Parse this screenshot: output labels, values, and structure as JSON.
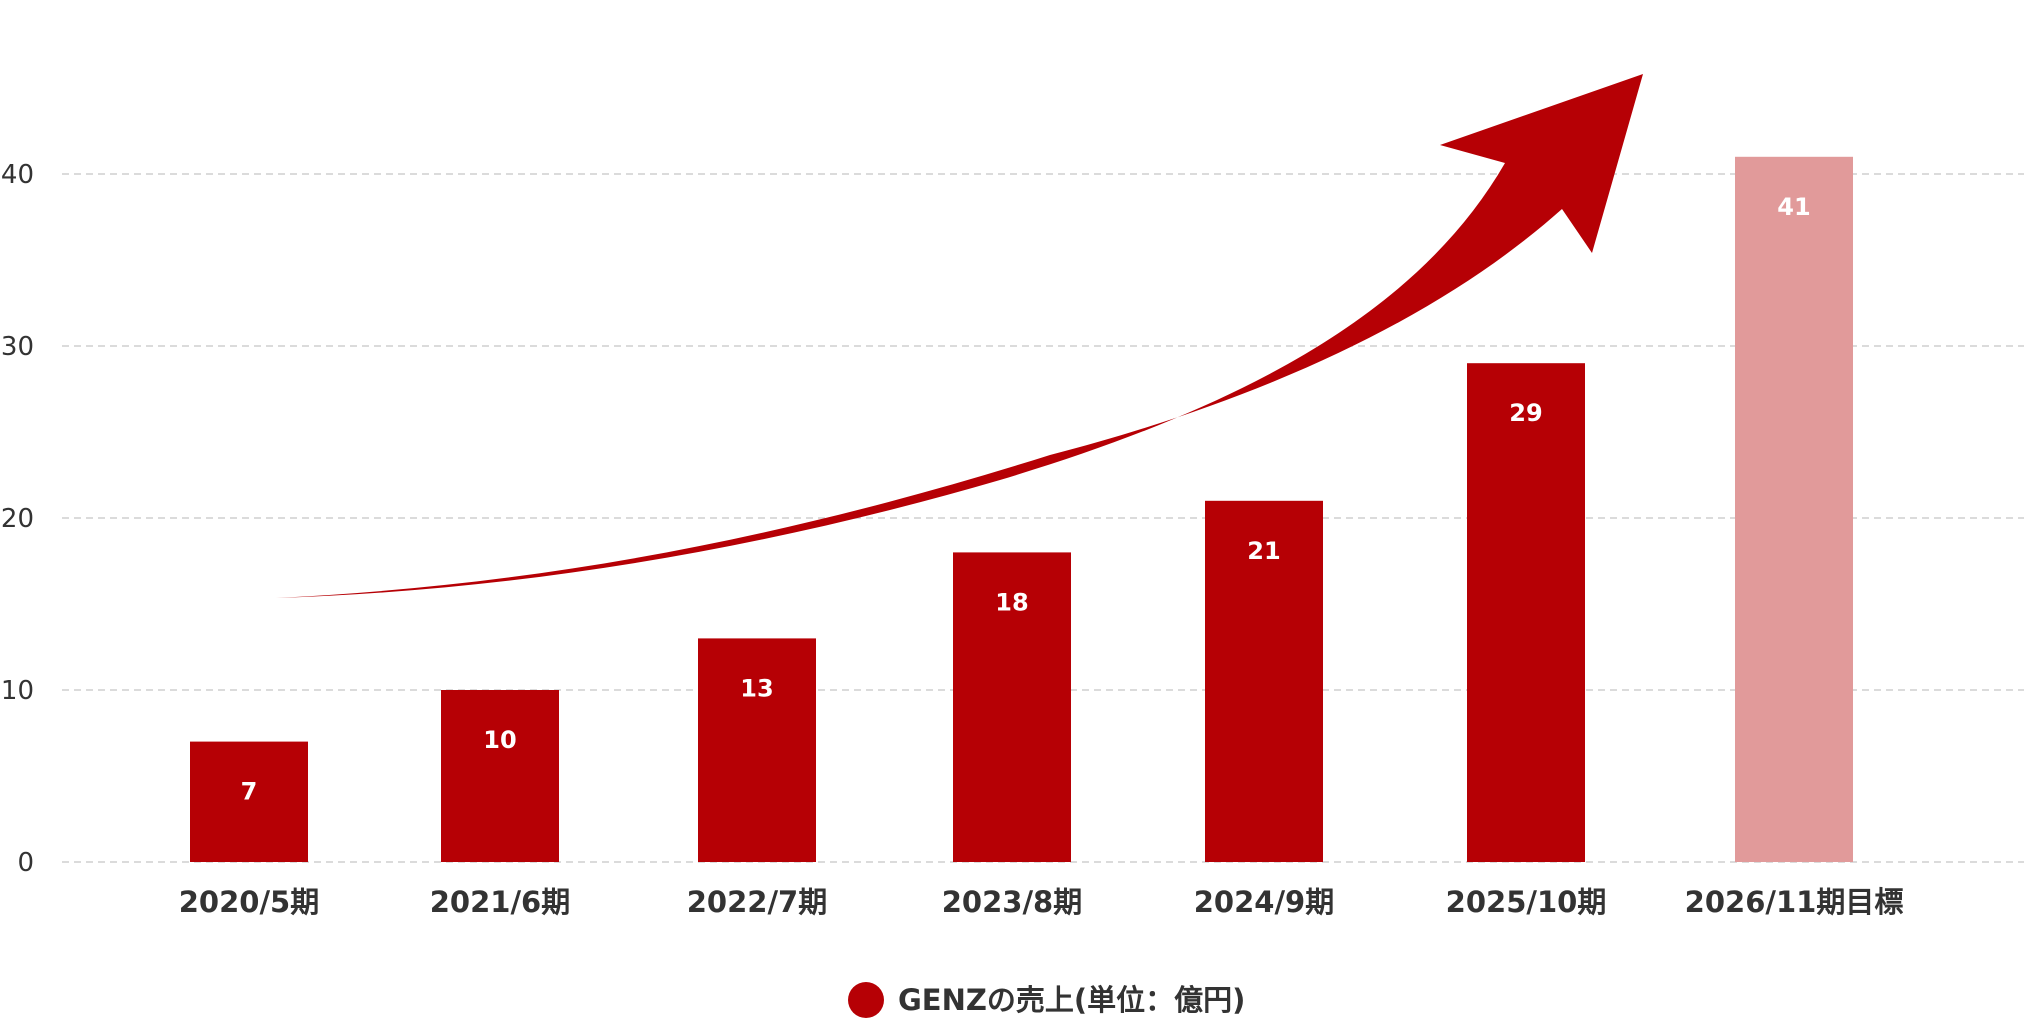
{
  "chart_data": {
    "type": "bar",
    "categories": [
      "2020/5期",
      "2021/6期",
      "2022/7期",
      "2023/8期",
      "2024/9期",
      "2025/10期",
      "2026/11期目標"
    ],
    "series": [
      {
        "name": "GENZの売上(単位：億円)",
        "values": [
          7,
          10,
          13,
          18,
          21,
          29,
          41
        ],
        "data_labels": [
          "7",
          "10",
          "13",
          "18",
          "21",
          "29",
          "41"
        ],
        "color": "#b60005",
        "highlight_color": "#e19a9a",
        "highlighted_categories": [
          "2026/11期目標"
        ]
      }
    ],
    "ylim": [
      0,
      45
    ],
    "yticks": [
      0,
      10,
      20,
      30,
      40
    ],
    "ytick_labels": [
      "0",
      "10",
      "20",
      "30",
      "40"
    ],
    "grid": true,
    "grid_style": "dashed",
    "legend": "bottom-center",
    "annotation": "growth-arrow",
    "annotation_color": "#b60005",
    "title": "",
    "xlabel": "",
    "ylabel": ""
  }
}
